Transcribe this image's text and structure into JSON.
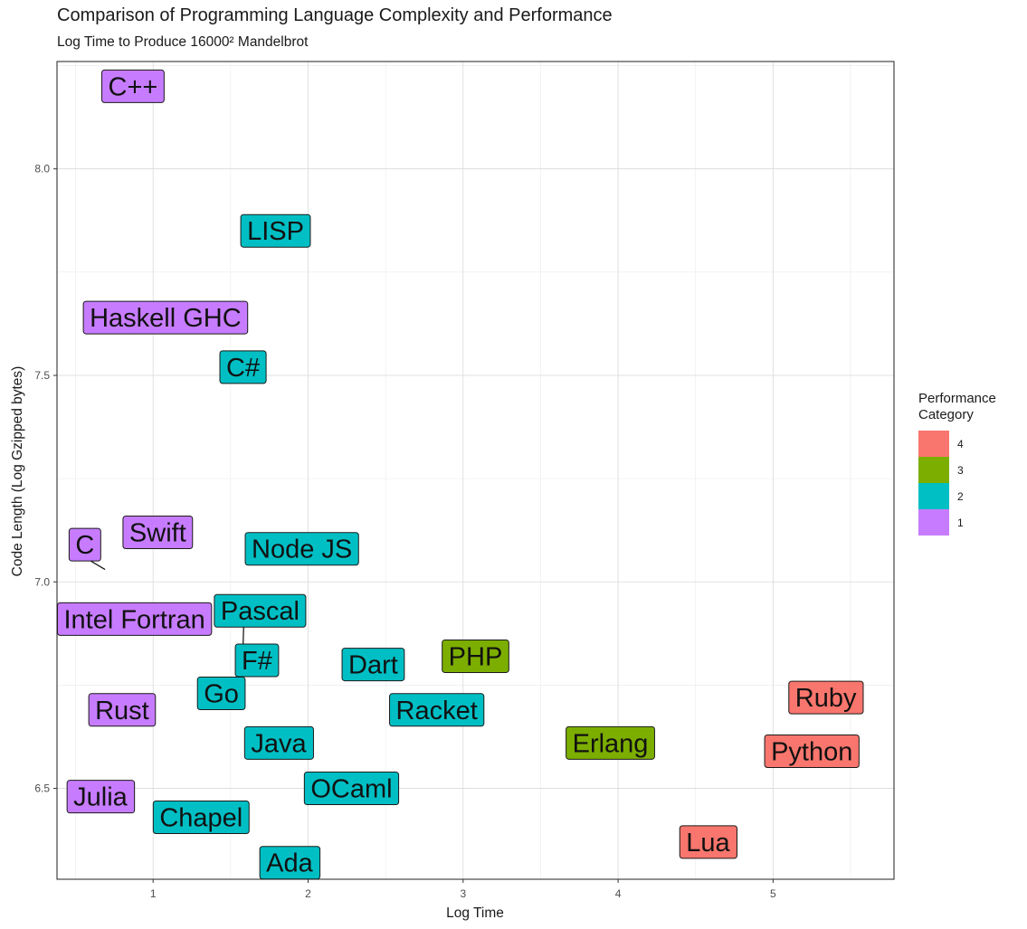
{
  "chart_data": {
    "type": "scatter",
    "title": "Comparison of Programming Language Complexity and Performance",
    "subtitle": "Log Time to Produce 16000² Mandelbrot",
    "xlabel": "Log Time",
    "ylabel": "Code Length (Log Gzipped bytes)",
    "xlim": [
      0.38,
      5.78
    ],
    "ylim": [
      6.28,
      8.26
    ],
    "x_ticks": [
      1,
      2,
      3,
      4,
      5
    ],
    "x_tick_labels": [
      "1",
      "2",
      "3",
      "4",
      "5"
    ],
    "y_ticks": [
      6.5,
      7.0,
      7.5,
      8.0
    ],
    "y_tick_labels": [
      "6.5",
      "7.0",
      "7.5",
      "8.0"
    ],
    "grid": true,
    "legend": {
      "title_lines": [
        "Performance",
        "Category"
      ],
      "placement": "right",
      "entries": [
        {
          "label": "4",
          "color": "#F8766D"
        },
        {
          "label": "3",
          "color": "#7CAE00"
        },
        {
          "label": "2",
          "color": "#00BFC4"
        },
        {
          "label": "1",
          "color": "#C77CFF"
        }
      ]
    },
    "points": [
      {
        "label": "C++",
        "x": 0.87,
        "y": 8.2,
        "category": "1"
      },
      {
        "label": "LISP",
        "x": 1.79,
        "y": 7.85,
        "category": "2"
      },
      {
        "label": "Haskell GHC",
        "x": 1.08,
        "y": 7.64,
        "category": "1"
      },
      {
        "label": "C#",
        "x": 1.58,
        "y": 7.52,
        "category": "2"
      },
      {
        "label": "Swift",
        "x": 1.03,
        "y": 7.12,
        "category": "1"
      },
      {
        "label": "C",
        "x": 0.68,
        "y": 7.03,
        "category": "1"
      },
      {
        "label": "Node JS",
        "x": 1.96,
        "y": 7.08,
        "category": "2"
      },
      {
        "label": "Pascal",
        "x": 1.59,
        "y": 6.86,
        "category": "2"
      },
      {
        "label": "Intel Fortran",
        "x": 0.88,
        "y": 6.91,
        "category": "1"
      },
      {
        "label": "F#",
        "x": 1.58,
        "y": 6.8,
        "category": "2"
      },
      {
        "label": "PHP",
        "x": 3.08,
        "y": 6.82,
        "category": "3"
      },
      {
        "label": "Dart",
        "x": 2.42,
        "y": 6.8,
        "category": "2"
      },
      {
        "label": "Go",
        "x": 1.44,
        "y": 6.73,
        "category": "2"
      },
      {
        "label": "Rust",
        "x": 0.8,
        "y": 6.69,
        "category": "1"
      },
      {
        "label": "Racket",
        "x": 2.83,
        "y": 6.69,
        "category": "2"
      },
      {
        "label": "Ruby",
        "x": 5.34,
        "y": 6.72,
        "category": "4"
      },
      {
        "label": "Java",
        "x": 1.81,
        "y": 6.61,
        "category": "2"
      },
      {
        "label": "Erlang",
        "x": 3.95,
        "y": 6.61,
        "category": "3"
      },
      {
        "label": "Python",
        "x": 5.25,
        "y": 6.59,
        "category": "4"
      },
      {
        "label": "OCaml",
        "x": 2.28,
        "y": 6.5,
        "category": "2"
      },
      {
        "label": "Julia",
        "x": 0.66,
        "y": 6.48,
        "category": "1"
      },
      {
        "label": "Chapel",
        "x": 1.31,
        "y": 6.43,
        "category": "2"
      },
      {
        "label": "Lua",
        "x": 4.58,
        "y": 6.37,
        "category": "4"
      },
      {
        "label": "Ada",
        "x": 1.88,
        "y": 6.32,
        "category": "2"
      }
    ]
  }
}
